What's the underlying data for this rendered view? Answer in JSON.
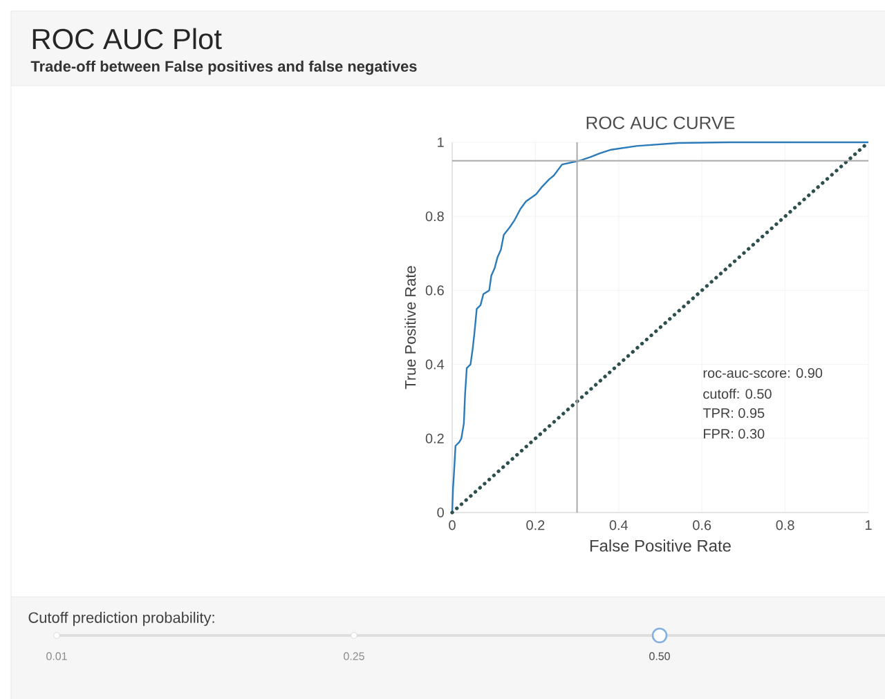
{
  "chart_data": {
    "type": "line",
    "title": "ROC AUC CURVE",
    "xlabel": "False Positive Rate",
    "ylabel": "True Positive Rate",
    "xlim": [
      0,
      1
    ],
    "ylim": [
      0,
      1
    ],
    "xticks": [
      0,
      0.2,
      0.4,
      0.6,
      0.8,
      1
    ],
    "yticks": [
      0,
      0.2,
      0.4,
      0.6,
      0.8,
      1
    ],
    "grid": true,
    "marker": "none",
    "series": [
      {
        "color": "#2b7bba",
        "line_style": "solid",
        "x": [
          0,
          0.002,
          0.004,
          0.008,
          0.017,
          0.022,
          0.028,
          0.031,
          0.035,
          0.044,
          0.049,
          0.053,
          0.059,
          0.068,
          0.075,
          0.089,
          0.094,
          0.102,
          0.109,
          0.117,
          0.124,
          0.138,
          0.15,
          0.164,
          0.177,
          0.202,
          0.216,
          0.233,
          0.244,
          0.264,
          0.305,
          0.332,
          0.354,
          0.382,
          0.443,
          0.543,
          0.664,
          1
        ],
        "values": [
          0,
          0.066,
          0.1,
          0.18,
          0.19,
          0.2,
          0.24,
          0.32,
          0.39,
          0.4,
          0.44,
          0.48,
          0.55,
          0.56,
          0.59,
          0.6,
          0.64,
          0.66,
          0.69,
          0.71,
          0.75,
          0.77,
          0.79,
          0.82,
          0.84,
          0.86,
          0.88,
          0.9,
          0.91,
          0.94,
          0.95,
          0.96,
          0.97,
          0.98,
          0.99,
          0.998,
          1,
          1
        ]
      },
      {
        "color": "#2f4f4f",
        "line_style": "dotted",
        "x": [
          0,
          1
        ],
        "values": [
          0,
          1
        ]
      }
    ],
    "ref_lines": [
      {
        "axis": "x",
        "value": 0.3,
        "color": "#aaaaaa"
      },
      {
        "axis": "y",
        "value": 0.95,
        "color": "#aaaaaa"
      }
    ],
    "annotations": [
      "ROC AUC Plot",
      "Trade-off between False positives and false negatives",
      "roc-auc-score: 0.90",
      "cutoff: 0.50",
      "TPR: 0.95",
      "FPR: 0.30",
      "Cutoff prediction probability:",
      "0.01",
      "0.25",
      "0.50"
    ]
  }
}
